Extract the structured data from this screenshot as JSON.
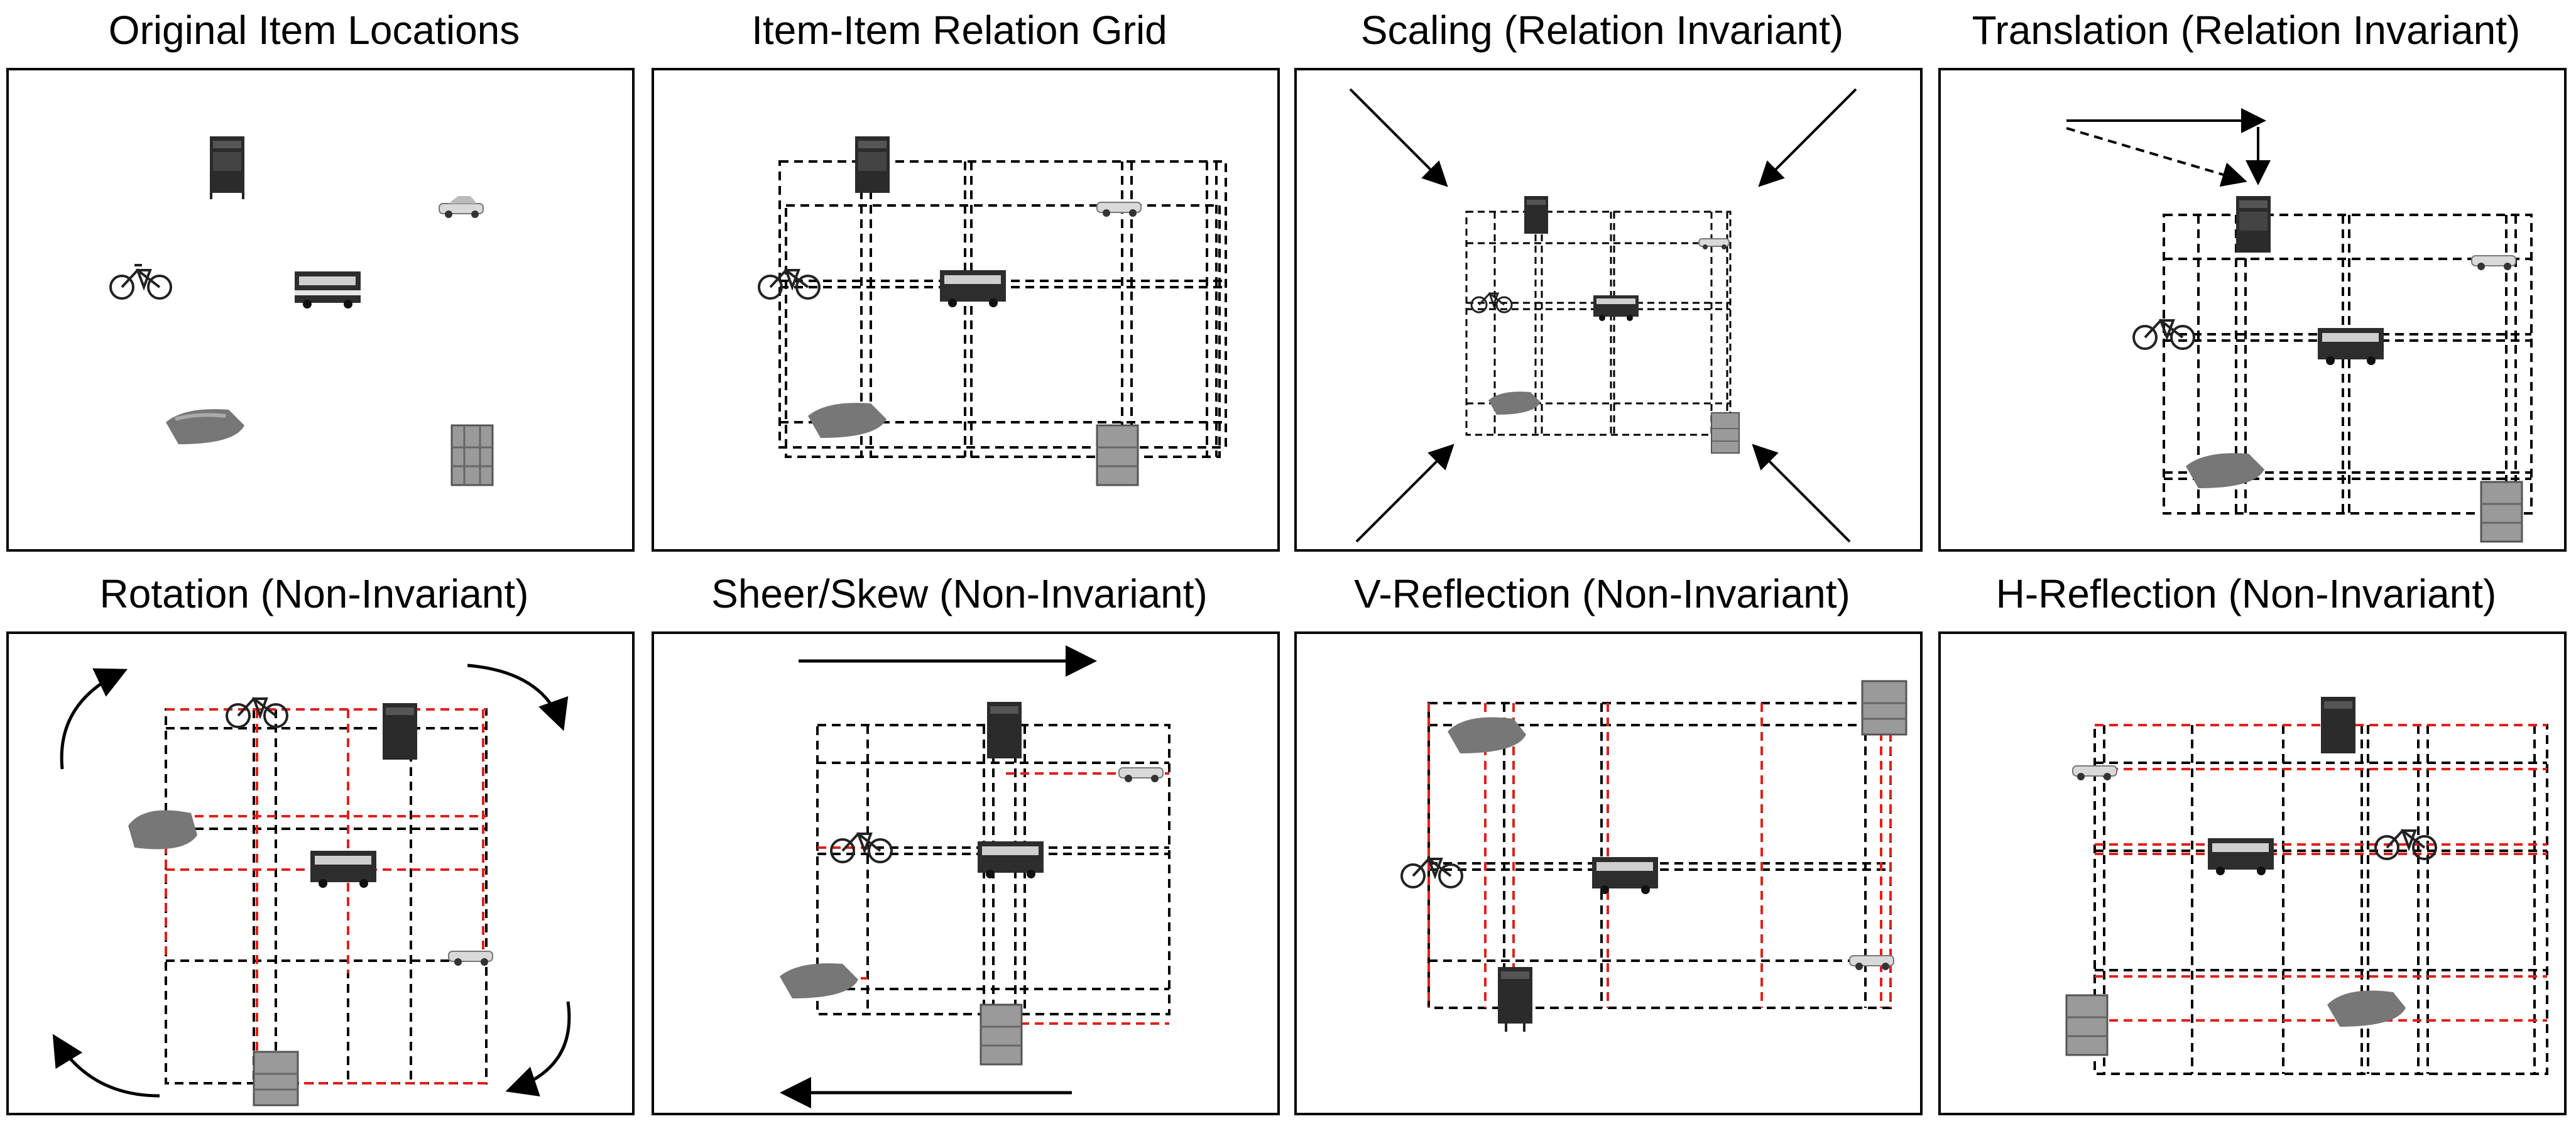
{
  "panels": [
    {
      "title": "Original Item Locations",
      "variant": "original"
    },
    {
      "title": "Item-Item Relation Grid",
      "variant": "grid"
    },
    {
      "title": "Scaling (Relation Invariant)",
      "variant": "scaling"
    },
    {
      "title": "Translation (Relation Invariant)",
      "variant": "translation"
    },
    {
      "title": "Rotation (Non-Invariant)",
      "variant": "rotation"
    },
    {
      "title": "Sheer/Skew (Non-Invariant)",
      "variant": "skew"
    },
    {
      "title": "V-Reflection (Non-Invariant)",
      "variant": "v-reflection"
    },
    {
      "title": "H-Reflection (Non-Invariant)",
      "variant": "h-reflection"
    }
  ],
  "items": [
    "cabinet",
    "car",
    "bicycle",
    "bus",
    "bed",
    "armchair"
  ],
  "colors": {
    "grid_line": "#000000",
    "changed_relation_line": "#e0201b",
    "item": "#3a3a3a"
  }
}
